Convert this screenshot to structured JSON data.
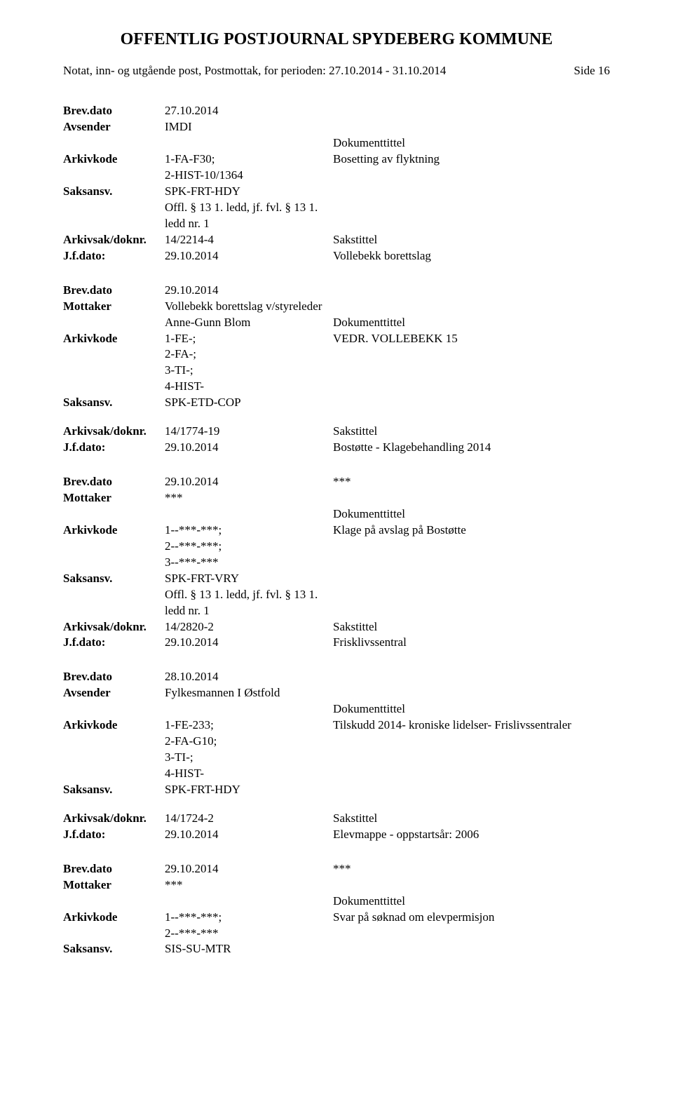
{
  "header": {
    "title": "OFFENTLIG POSTJOURNAL SPYDEBERG KOMMUNE",
    "subtitle": "Notat, inn- og utgående post, Postmottak, for perioden: 27.10.2014 - 31.10.2014",
    "page_label": "Side 16"
  },
  "labels": {
    "brevdato": "Brev.dato",
    "avsender": "Avsender",
    "mottaker": "Mottaker",
    "arkivkode": "Arkivkode",
    "saksansv": "Saksansv.",
    "arkivsak": "Arkivsak/doknr.",
    "jfdato": "J.f.dato:",
    "dokumenttittel": "Dokumenttittel",
    "sakstittel": "Sakstittel"
  },
  "entries": [
    {
      "brevdato": "27.10.2014",
      "partyLabel": "Avsender",
      "party": "IMDI",
      "arkivkode_lines": [
        "1-FA-F30;",
        "2-HIST-10/1364"
      ],
      "dokumenttittel": "Bosetting av flyktning",
      "saksansv_lines": [
        "SPK-FRT-HDY",
        "Offl. § 13 1. ledd, jf. fvl. § 13 1.",
        "ledd nr. 1"
      ],
      "arkivsak": "14/2214-4",
      "jfdato": "29.10.2014",
      "sakstittel_after_jfdato": "Vollebekk borettslag"
    },
    {
      "brevdato": "29.10.2014",
      "partyLabel": "Mottaker",
      "party_lines": [
        "Vollebekk borettslag v/styreleder",
        "Anne-Gunn Blom"
      ],
      "arkivkode_lines": [
        "1-FE-;",
        "2-FA-;",
        "3-TI-;",
        "4-HIST-"
      ],
      "dokumenttittel": "VEDR. VOLLEBEKK 15",
      "saksansv_lines": [
        "SPK-ETD-COP"
      ],
      "arkivsak": "14/1774-19",
      "jfdato": "29.10.2014",
      "sakstittel_after_jfdato": "Bostøtte - Klagebehandling 2014",
      "gap_before_arkivsak": true
    },
    {
      "brevdato": "29.10.2014",
      "brevdato_suffix": "***",
      "partyLabel": "Mottaker",
      "party": "***",
      "arkivkode_lines": [
        "1--***-***;",
        "2--***-***;",
        "3--***-***"
      ],
      "dokumenttittel": "Klage på avslag på Bostøtte",
      "saksansv_lines": [
        "SPK-FRT-VRY",
        "Offl. § 13 1. ledd, jf. fvl. § 13 1.",
        "ledd nr. 1"
      ],
      "arkivsak": "14/2820-2",
      "jfdato": "29.10.2014",
      "sakstittel_after_jfdato": "Frisklivssentral"
    },
    {
      "brevdato": "28.10.2014",
      "partyLabel": "Avsender",
      "party": "Fylkesmannen I Østfold",
      "arkivkode_lines": [
        "1-FE-233;",
        "2-FA-G10;",
        "3-TI-;",
        "4-HIST-"
      ],
      "dokumenttittel": "Tilskudd 2014- kroniske lidelser- Frislivssentraler",
      "saksansv_lines": [
        "SPK-FRT-HDY"
      ],
      "arkivsak": "14/1724-2",
      "jfdato": "29.10.2014",
      "sakstittel_after_jfdato": "Elevmappe - oppstartsår: 2006",
      "gap_before_arkivsak": true
    },
    {
      "brevdato": "29.10.2014",
      "brevdato_suffix": "***",
      "partyLabel": "Mottaker",
      "party": "***",
      "arkivkode_lines": [
        "1--***-***;",
        "2--***-***"
      ],
      "dokumenttittel": "Svar på søknad om elevpermisjon",
      "saksansv_lines": [
        "SIS-SU-MTR"
      ],
      "no_arkivsak": true
    }
  ]
}
